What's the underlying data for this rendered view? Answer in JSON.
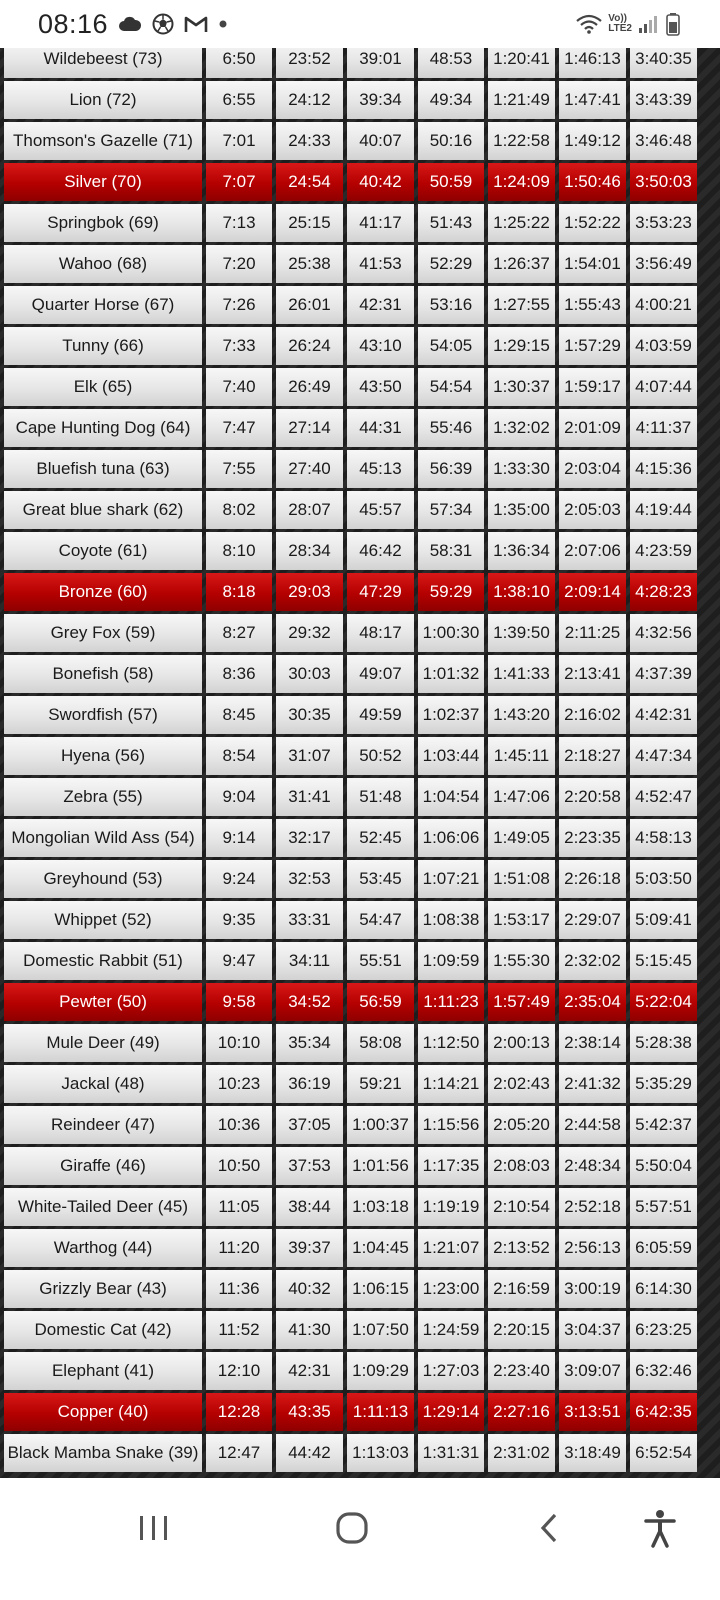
{
  "status_bar": {
    "time": "08:16",
    "icons": [
      "cloud-icon",
      "soccer-ball-icon",
      "gmail-icon",
      "dot-icon"
    ],
    "network": {
      "top": "Vo))",
      "bottom": "LTE2"
    },
    "right_icons": [
      "wifi-icon",
      "signal-icon",
      "battery-icon"
    ]
  },
  "table": {
    "rows": [
      {
        "name": "Wildebeest (73)",
        "times": [
          "6:50",
          "23:52",
          "39:01",
          "48:53",
          "1:20:41",
          "1:46:13",
          "3:40:35"
        ],
        "medal": false
      },
      {
        "name": "Lion (72)",
        "times": [
          "6:55",
          "24:12",
          "39:34",
          "49:34",
          "1:21:49",
          "1:47:41",
          "3:43:39"
        ],
        "medal": false
      },
      {
        "name": "Thomson's Gazelle (71)",
        "times": [
          "7:01",
          "24:33",
          "40:07",
          "50:16",
          "1:22:58",
          "1:49:12",
          "3:46:48"
        ],
        "medal": false
      },
      {
        "name": "Silver (70)",
        "times": [
          "7:07",
          "24:54",
          "40:42",
          "50:59",
          "1:24:09",
          "1:50:46",
          "3:50:03"
        ],
        "medal": true
      },
      {
        "name": "Springbok (69)",
        "times": [
          "7:13",
          "25:15",
          "41:17",
          "51:43",
          "1:25:22",
          "1:52:22",
          "3:53:23"
        ],
        "medal": false
      },
      {
        "name": "Wahoo (68)",
        "times": [
          "7:20",
          "25:38",
          "41:53",
          "52:29",
          "1:26:37",
          "1:54:01",
          "3:56:49"
        ],
        "medal": false
      },
      {
        "name": "Quarter Horse (67)",
        "times": [
          "7:26",
          "26:01",
          "42:31",
          "53:16",
          "1:27:55",
          "1:55:43",
          "4:00:21"
        ],
        "medal": false
      },
      {
        "name": "Tunny (66)",
        "times": [
          "7:33",
          "26:24",
          "43:10",
          "54:05",
          "1:29:15",
          "1:57:29",
          "4:03:59"
        ],
        "medal": false
      },
      {
        "name": "Elk (65)",
        "times": [
          "7:40",
          "26:49",
          "43:50",
          "54:54",
          "1:30:37",
          "1:59:17",
          "4:07:44"
        ],
        "medal": false
      },
      {
        "name": "Cape Hunting Dog (64)",
        "times": [
          "7:47",
          "27:14",
          "44:31",
          "55:46",
          "1:32:02",
          "2:01:09",
          "4:11:37"
        ],
        "medal": false
      },
      {
        "name": "Bluefish tuna (63)",
        "times": [
          "7:55",
          "27:40",
          "45:13",
          "56:39",
          "1:33:30",
          "2:03:04",
          "4:15:36"
        ],
        "medal": false
      },
      {
        "name": "Great blue shark (62)",
        "times": [
          "8:02",
          "28:07",
          "45:57",
          "57:34",
          "1:35:00",
          "2:05:03",
          "4:19:44"
        ],
        "medal": false
      },
      {
        "name": "Coyote (61)",
        "times": [
          "8:10",
          "28:34",
          "46:42",
          "58:31",
          "1:36:34",
          "2:07:06",
          "4:23:59"
        ],
        "medal": false
      },
      {
        "name": "Bronze (60)",
        "times": [
          "8:18",
          "29:03",
          "47:29",
          "59:29",
          "1:38:10",
          "2:09:14",
          "4:28:23"
        ],
        "medal": true
      },
      {
        "name": "Grey Fox (59)",
        "times": [
          "8:27",
          "29:32",
          "48:17",
          "1:00:30",
          "1:39:50",
          "2:11:25",
          "4:32:56"
        ],
        "medal": false
      },
      {
        "name": "Bonefish (58)",
        "times": [
          "8:36",
          "30:03",
          "49:07",
          "1:01:32",
          "1:41:33",
          "2:13:41",
          "4:37:39"
        ],
        "medal": false
      },
      {
        "name": "Swordfish (57)",
        "times": [
          "8:45",
          "30:35",
          "49:59",
          "1:02:37",
          "1:43:20",
          "2:16:02",
          "4:42:31"
        ],
        "medal": false
      },
      {
        "name": "Hyena (56)",
        "times": [
          "8:54",
          "31:07",
          "50:52",
          "1:03:44",
          "1:45:11",
          "2:18:27",
          "4:47:34"
        ],
        "medal": false
      },
      {
        "name": "Zebra (55)",
        "times": [
          "9:04",
          "31:41",
          "51:48",
          "1:04:54",
          "1:47:06",
          "2:20:58",
          "4:52:47"
        ],
        "medal": false
      },
      {
        "name": "Mongolian Wild Ass (54)",
        "times": [
          "9:14",
          "32:17",
          "52:45",
          "1:06:06",
          "1:49:05",
          "2:23:35",
          "4:58:13"
        ],
        "medal": false
      },
      {
        "name": "Greyhound (53)",
        "times": [
          "9:24",
          "32:53",
          "53:45",
          "1:07:21",
          "1:51:08",
          "2:26:18",
          "5:03:50"
        ],
        "medal": false
      },
      {
        "name": "Whippet (52)",
        "times": [
          "9:35",
          "33:31",
          "54:47",
          "1:08:38",
          "1:53:17",
          "2:29:07",
          "5:09:41"
        ],
        "medal": false
      },
      {
        "name": "Domestic Rabbit (51)",
        "times": [
          "9:47",
          "34:11",
          "55:51",
          "1:09:59",
          "1:55:30",
          "2:32:02",
          "5:15:45"
        ],
        "medal": false
      },
      {
        "name": "Pewter (50)",
        "times": [
          "9:58",
          "34:52",
          "56:59",
          "1:11:23",
          "1:57:49",
          "2:35:04",
          "5:22:04"
        ],
        "medal": true
      },
      {
        "name": "Mule Deer (49)",
        "times": [
          "10:10",
          "35:34",
          "58:08",
          "1:12:50",
          "2:00:13",
          "2:38:14",
          "5:28:38"
        ],
        "medal": false
      },
      {
        "name": "Jackal (48)",
        "times": [
          "10:23",
          "36:19",
          "59:21",
          "1:14:21",
          "2:02:43",
          "2:41:32",
          "5:35:29"
        ],
        "medal": false
      },
      {
        "name": "Reindeer (47)",
        "times": [
          "10:36",
          "37:05",
          "1:00:37",
          "1:15:56",
          "2:05:20",
          "2:44:58",
          "5:42:37"
        ],
        "medal": false
      },
      {
        "name": "Giraffe (46)",
        "times": [
          "10:50",
          "37:53",
          "1:01:56",
          "1:17:35",
          "2:08:03",
          "2:48:34",
          "5:50:04"
        ],
        "medal": false
      },
      {
        "name": "White-Tailed Deer (45)",
        "times": [
          "11:05",
          "38:44",
          "1:03:18",
          "1:19:19",
          "2:10:54",
          "2:52:18",
          "5:57:51"
        ],
        "medal": false
      },
      {
        "name": "Warthog (44)",
        "times": [
          "11:20",
          "39:37",
          "1:04:45",
          "1:21:07",
          "2:13:52",
          "2:56:13",
          "6:05:59"
        ],
        "medal": false
      },
      {
        "name": "Grizzly Bear (43)",
        "times": [
          "11:36",
          "40:32",
          "1:06:15",
          "1:23:00",
          "2:16:59",
          "3:00:19",
          "6:14:30"
        ],
        "medal": false
      },
      {
        "name": "Domestic Cat (42)",
        "times": [
          "11:52",
          "41:30",
          "1:07:50",
          "1:24:59",
          "2:20:15",
          "3:04:37",
          "6:23:25"
        ],
        "medal": false
      },
      {
        "name": "Elephant (41)",
        "times": [
          "12:10",
          "42:31",
          "1:09:29",
          "1:27:03",
          "2:23:40",
          "3:09:07",
          "6:32:46"
        ],
        "medal": false
      },
      {
        "name": "Copper (40)",
        "times": [
          "12:28",
          "43:35",
          "1:11:13",
          "1:29:14",
          "2:27:16",
          "3:13:51",
          "6:42:35"
        ],
        "medal": true
      },
      {
        "name": "Black Mamba Snake (39)",
        "times": [
          "12:47",
          "44:42",
          "1:13:03",
          "1:31:31",
          "2:31:02",
          "3:18:49",
          "6:52:54"
        ],
        "medal": false
      }
    ]
  },
  "nav_bar": {
    "buttons": [
      "recent-apps",
      "home",
      "back",
      "accessibility"
    ]
  },
  "colors": {
    "medal_row": "#b40000",
    "cell": "#e6e6e6",
    "background": "#2a2a2a"
  }
}
